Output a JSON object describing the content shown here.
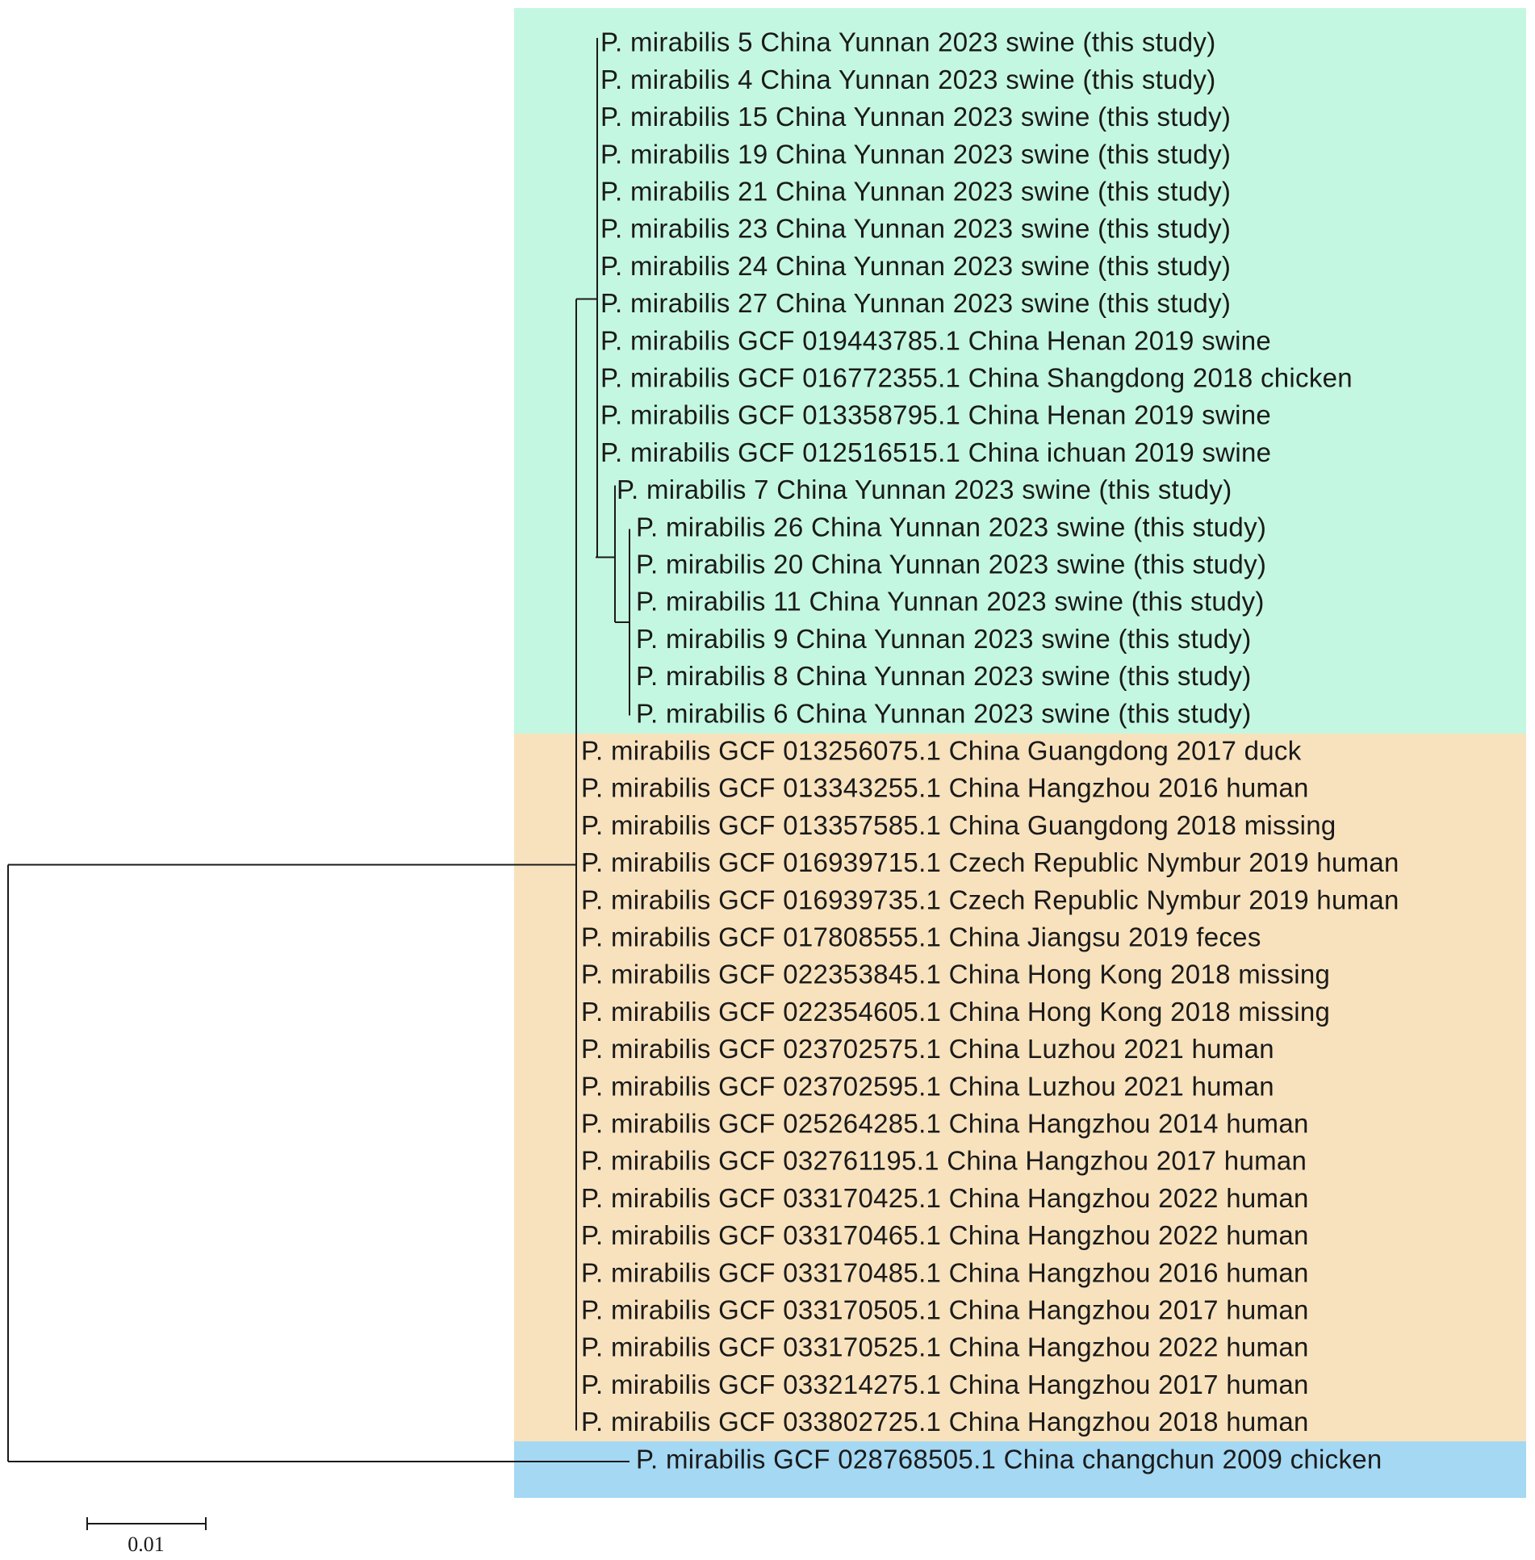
{
  "figure": {
    "clade_colors": {
      "yunnan": "#c4f7e1",
      "mixed": "#f8e2bd",
      "outgroup": "#a4d8f3",
      "branch": "#1a1a1a"
    },
    "scale_bar_label": "0.01"
  },
  "clades": [
    {
      "id": "yunnan",
      "color_key": "yunnan"
    },
    {
      "id": "mixed",
      "color_key": "mixed"
    },
    {
      "id": "outgroup",
      "color_key": "outgroup"
    }
  ],
  "leaves": [
    {
      "label": "P. mirabilis 5 China Yunnan 2023 swine (this study)",
      "clade": "yunnan"
    },
    {
      "label": "P. mirabilis 4 China Yunnan 2023 swine (this study)",
      "clade": "yunnan"
    },
    {
      "label": "P. mirabilis 15 China Yunnan 2023 swine (this study)",
      "clade": "yunnan"
    },
    {
      "label": "P. mirabilis 19 China Yunnan 2023 swine (this study)",
      "clade": "yunnan"
    },
    {
      "label": "P. mirabilis 21 China Yunnan 2023 swine (this study)",
      "clade": "yunnan"
    },
    {
      "label": "P. mirabilis 23 China Yunnan 2023 swine (this study)",
      "clade": "yunnan"
    },
    {
      "label": "P. mirabilis 24 China Yunnan 2023 swine (this study)",
      "clade": "yunnan"
    },
    {
      "label": "P. mirabilis 27 China Yunnan 2023 swine (this study)",
      "clade": "yunnan"
    },
    {
      "label": "P. mirabilis GCF 019443785.1 China Henan 2019 swine",
      "clade": "yunnan"
    },
    {
      "label": "P. mirabilis GCF 016772355.1 China Shangdong 2018 chicken",
      "clade": "yunnan"
    },
    {
      "label": "P. mirabilis GCF 013358795.1 China Henan 2019 swine",
      "clade": "yunnan"
    },
    {
      "label": "P. mirabilis GCF 012516515.1 China ichuan 2019 swine",
      "clade": "yunnan"
    },
    {
      "label": "P. mirabilis 7 China Yunnan 2023 swine (this study)",
      "clade": "yunnan"
    },
    {
      "label": "P. mirabilis 26 China Yunnan 2023 swine (this study)",
      "clade": "yunnan"
    },
    {
      "label": "P. mirabilis 20 China Yunnan 2023 swine (this study)",
      "clade": "yunnan"
    },
    {
      "label": "P. mirabilis 11 China Yunnan 2023 swine (this study)",
      "clade": "yunnan"
    },
    {
      "label": "P. mirabilis 9 China Yunnan 2023 swine (this study)",
      "clade": "yunnan"
    },
    {
      "label": "P. mirabilis 8 China Yunnan 2023 swine (this study)",
      "clade": "yunnan"
    },
    {
      "label": "P. mirabilis 6 China Yunnan 2023 swine (this study)",
      "clade": "yunnan"
    },
    {
      "label": "P. mirabilis GCF 013256075.1 China Guangdong 2017 duck",
      "clade": "mixed"
    },
    {
      "label": "P. mirabilis GCF 013343255.1 China Hangzhou 2016 human",
      "clade": "mixed"
    },
    {
      "label": "P. mirabilis GCF 013357585.1 China Guangdong 2018 missing",
      "clade": "mixed"
    },
    {
      "label": "P. mirabilis GCF 016939715.1 Czech Republic Nymbur 2019 human",
      "clade": "mixed"
    },
    {
      "label": "P. mirabilis GCF 016939735.1 Czech Republic Nymbur 2019 human",
      "clade": "mixed"
    },
    {
      "label": "P. mirabilis GCF 017808555.1 China Jiangsu 2019 feces",
      "clade": "mixed"
    },
    {
      "label": "P. mirabilis GCF 022353845.1 China Hong Kong 2018 missing",
      "clade": "mixed"
    },
    {
      "label": "P. mirabilis GCF 022354605.1 China Hong Kong 2018 missing",
      "clade": "mixed"
    },
    {
      "label": "P. mirabilis GCF 023702575.1 China Luzhou 2021 human",
      "clade": "mixed"
    },
    {
      "label": "P. mirabilis GCF 023702595.1 China Luzhou 2021 human",
      "clade": "mixed"
    },
    {
      "label": "P. mirabilis GCF 025264285.1 China Hangzhou 2014 human",
      "clade": "mixed"
    },
    {
      "label": "P. mirabilis GCF 032761195.1 China Hangzhou 2017 human",
      "clade": "mixed"
    },
    {
      "label": "P. mirabilis GCF 033170425.1 China Hangzhou 2022 human",
      "clade": "mixed"
    },
    {
      "label": "P. mirabilis GCF 033170465.1 China Hangzhou 2022 human",
      "clade": "mixed"
    },
    {
      "label": "P. mirabilis GCF 033170485.1 China Hangzhou 2016 human",
      "clade": "mixed"
    },
    {
      "label": "P. mirabilis GCF 033170505.1 China Hangzhou 2017 human",
      "clade": "mixed"
    },
    {
      "label": "P. mirabilis GCF 033170525.1 China Hangzhou 2022 human",
      "clade": "mixed"
    },
    {
      "label": "P. mirabilis GCF 033214275.1 China Hangzhou 2017 human",
      "clade": "mixed"
    },
    {
      "label": "P. mirabilis GCF 033802725.1 China Hangzhou 2018 human",
      "clade": "mixed"
    },
    {
      "label": "P. mirabilis GCF 028768505.1 China changchun 2009 chicken",
      "clade": "outgroup"
    }
  ]
}
